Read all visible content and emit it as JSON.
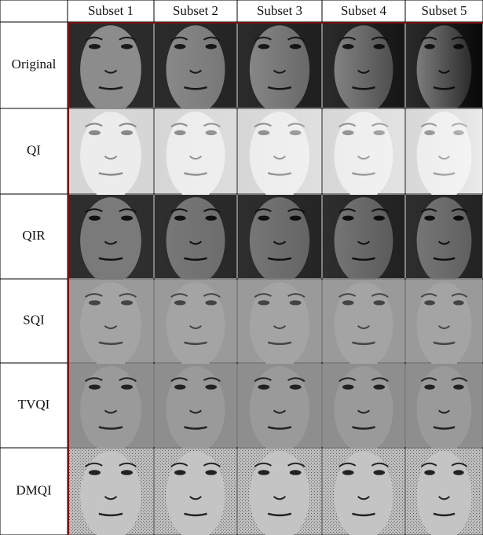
{
  "table": {
    "columns": [
      "Subset 1",
      "Subset 2",
      "Subset 3",
      "Subset 4",
      "Subset 5"
    ],
    "rows": [
      "Original",
      "QI",
      "QIR",
      "SQI",
      "TVQI",
      "DMQI"
    ]
  }
}
